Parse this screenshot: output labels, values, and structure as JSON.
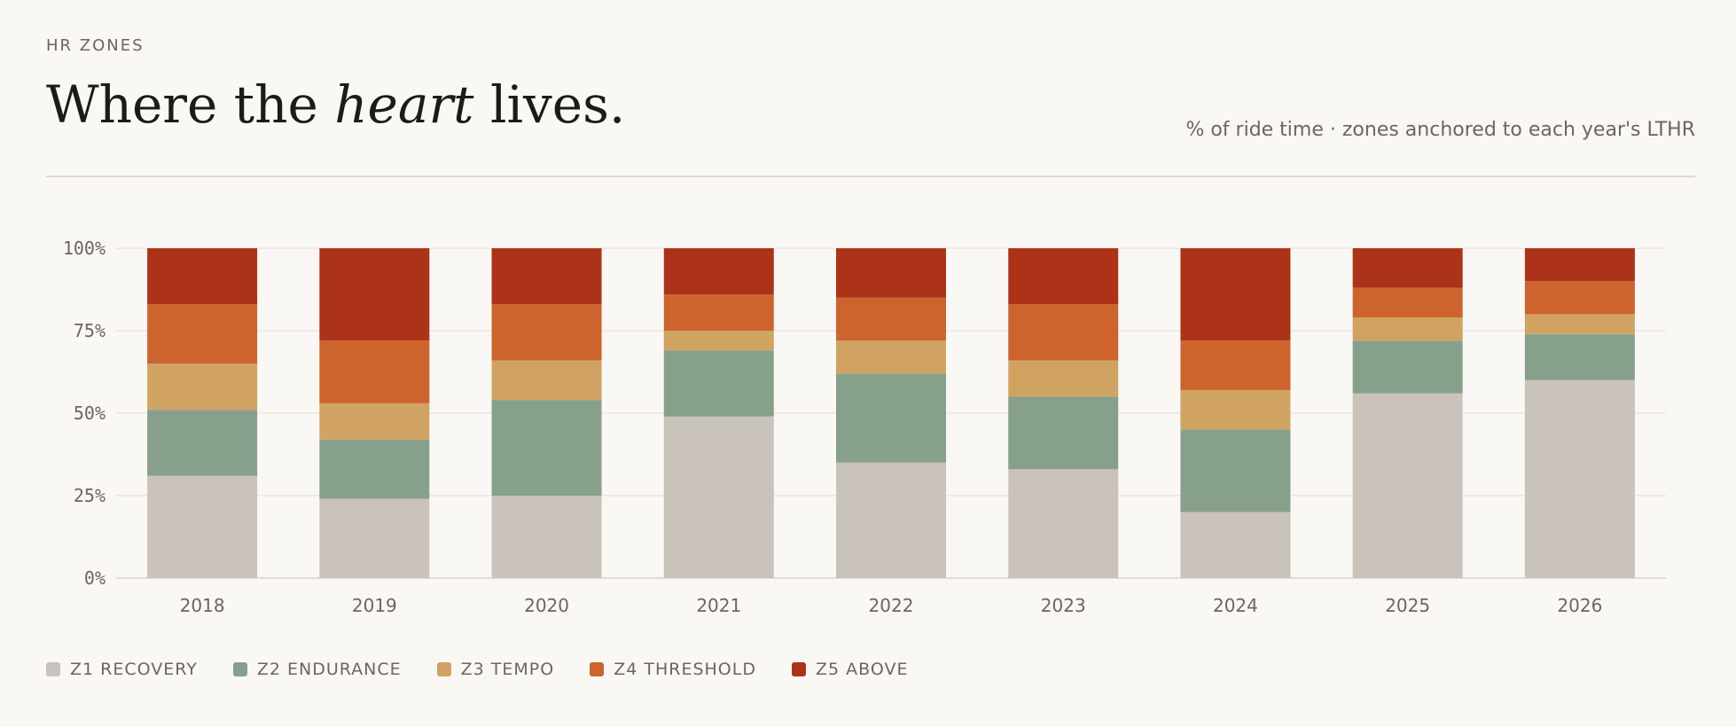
{
  "eyebrow": "HR ZONES",
  "title": {
    "before": "Where the",
    "emphasis": "heart",
    "after": "lives."
  },
  "subtitle": "% of ride time · zones anchored to each year's LTHR",
  "chart_data": {
    "type": "stacked-bar",
    "categories": [
      "2018",
      "2019",
      "2020",
      "2021",
      "2022",
      "2023",
      "2024",
      "2025",
      "2026"
    ],
    "series": [
      {
        "name": "Z1 RECOVERY",
        "color": "#c9c3bc",
        "values": [
          31,
          24,
          25,
          49,
          35,
          33,
          20,
          56,
          60
        ]
      },
      {
        "name": "Z2 ENDURANCE",
        "color": "#87a08b",
        "values": [
          20,
          18,
          29,
          20,
          27,
          22,
          25,
          16,
          14
        ]
      },
      {
        "name": "Z3 TEMPO",
        "color": "#d0a362",
        "values": [
          14,
          11,
          12,
          6,
          10,
          11,
          12,
          7,
          6
        ]
      },
      {
        "name": "Z4 THRESHOLD",
        "color": "#cd632d",
        "values": [
          18,
          19,
          17,
          11,
          13,
          17,
          15,
          9,
          10
        ]
      },
      {
        "name": "Z5 ABOVE",
        "color": "#ac3318",
        "values": [
          17,
          28,
          17,
          14,
          15,
          17,
          28,
          12,
          10
        ]
      }
    ],
    "ylim": [
      0,
      100
    ],
    "yticks": [
      {
        "value": 0,
        "label": "0%"
      },
      {
        "value": 25,
        "label": "25%"
      },
      {
        "value": 50,
        "label": "50%"
      },
      {
        "value": 75,
        "label": "75%"
      },
      {
        "value": 100,
        "label": "100%"
      }
    ],
    "grid": true
  }
}
